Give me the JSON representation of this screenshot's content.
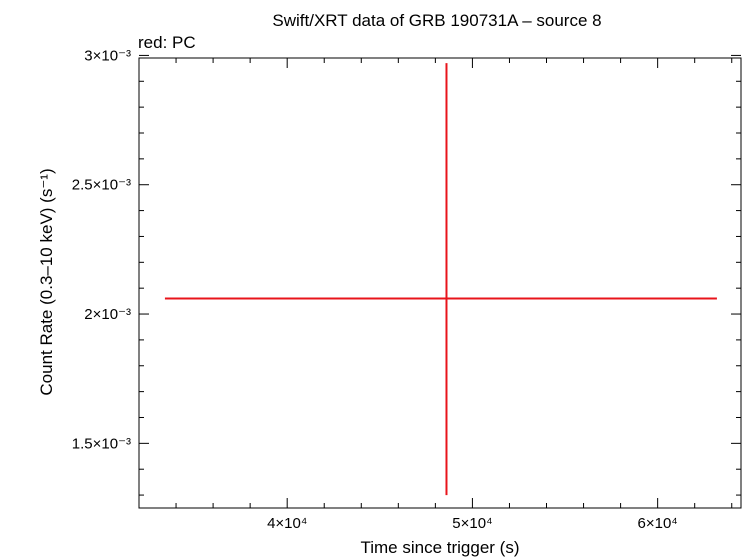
{
  "chart_data": {
    "type": "scatter",
    "title": "Swift/XRT data of GRB 190731A – source 8",
    "legend_text": "red: PC",
    "xlabel": "Time since trigger (s)",
    "ylabel": "Count Rate (0.3–10 keV) (s⁻¹)",
    "x_scale": "linear",
    "y_scale": "linear",
    "xlim": [
      32000,
      64500
    ],
    "ylim": [
      0.00125,
      0.00299
    ],
    "x_ticks": [
      {
        "value": 40000,
        "label": "4×10⁴"
      },
      {
        "value": 50000,
        "label": "5×10⁴"
      },
      {
        "value": 60000,
        "label": "6×10⁴"
      }
    ],
    "y_ticks": [
      {
        "value": 0.0015,
        "label": "1.5×10⁻³"
      },
      {
        "value": 0.002,
        "label": "2×10⁻³"
      },
      {
        "value": 0.0025,
        "label": "2.5×10⁻³"
      },
      {
        "value": 0.003,
        "label": "3×10⁻³"
      }
    ],
    "grid": false,
    "series": [
      {
        "name": "PC",
        "color": "#e8141b",
        "points": [
          {
            "x": 48600,
            "x_low": 33400,
            "x_high": 63200,
            "y": 0.00206,
            "y_low": 0.0013,
            "y_high": 0.00297
          }
        ]
      }
    ]
  }
}
